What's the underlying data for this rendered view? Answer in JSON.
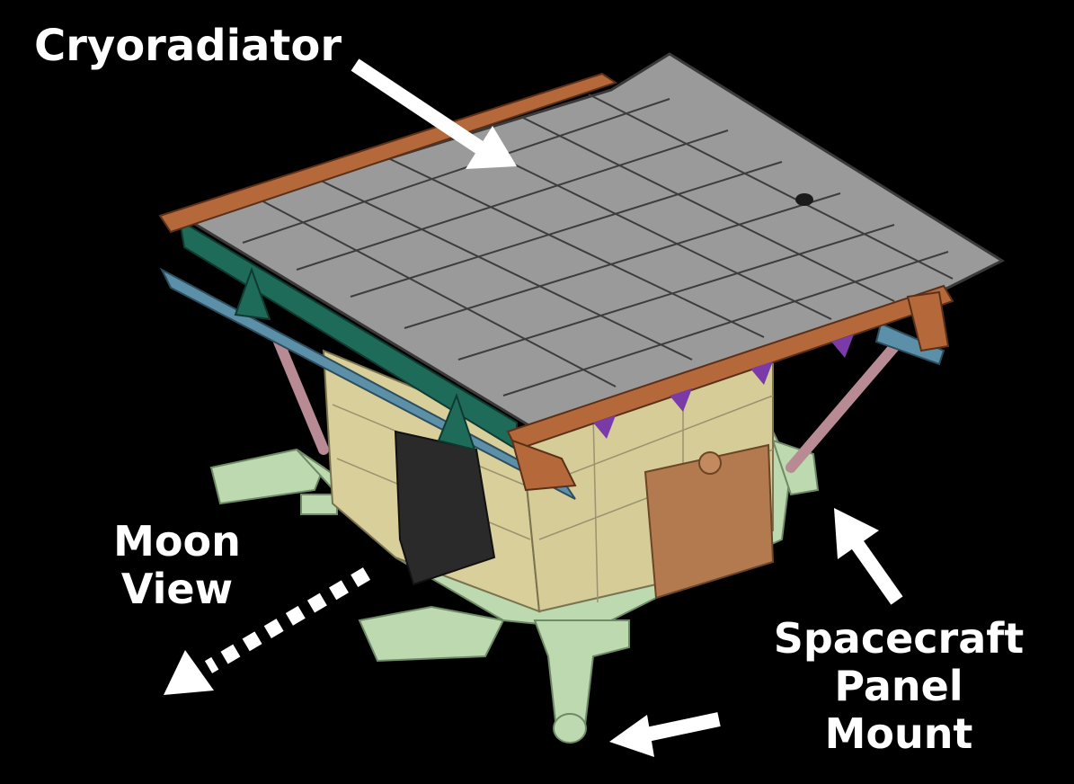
{
  "labels": {
    "cryoradiator": "Cryoradiator",
    "moon_view_line1": "Moon",
    "moon_view_line2": "View",
    "spacecraft_line1": "Spacecraft",
    "spacecraft_line2": "Panel Mount"
  },
  "colors": {
    "background": "#000000",
    "radiator_panel": "#9a9a9a",
    "frame_copper": "#b5693a",
    "green_beam": "#1f6b5a",
    "blue_frame": "#5c8fa8",
    "instrument_body": "#d9cf9a",
    "mount_plate": "#bcd9b0",
    "electronics_box": "#b27a4e",
    "strut": "#b88b94",
    "purple_bracket": "#7a3aa8",
    "annotation": "#ffffff"
  }
}
